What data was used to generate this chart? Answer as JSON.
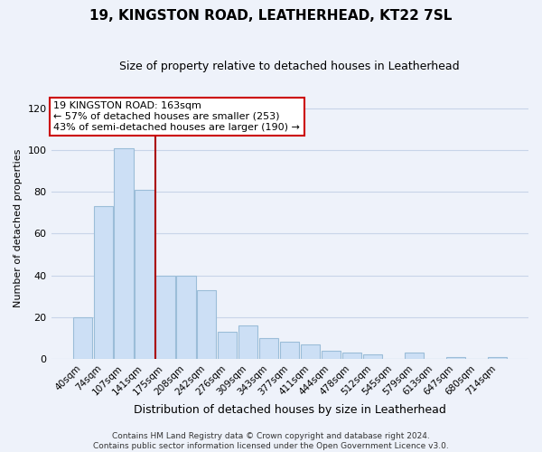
{
  "title": "19, KINGSTON ROAD, LEATHERHEAD, KT22 7SL",
  "subtitle": "Size of property relative to detached houses in Leatherhead",
  "xlabel": "Distribution of detached houses by size in Leatherhead",
  "ylabel": "Number of detached properties",
  "bar_labels": [
    "40sqm",
    "74sqm",
    "107sqm",
    "141sqm",
    "175sqm",
    "208sqm",
    "242sqm",
    "276sqm",
    "309sqm",
    "343sqm",
    "377sqm",
    "411sqm",
    "444sqm",
    "478sqm",
    "512sqm",
    "545sqm",
    "579sqm",
    "613sqm",
    "647sqm",
    "680sqm",
    "714sqm"
  ],
  "bar_values": [
    20,
    73,
    101,
    81,
    40,
    40,
    33,
    13,
    16,
    10,
    8,
    7,
    4,
    3,
    2,
    0,
    3,
    0,
    1,
    0,
    1
  ],
  "bar_color": "#ccdff5",
  "bar_edge_color": "#9bbdd8",
  "vline_color": "#aa0000",
  "annotation_line1": "19 KINGSTON ROAD: 163sqm",
  "annotation_line2": "← 57% of detached houses are smaller (253)",
  "annotation_line3": "43% of semi-detached houses are larger (190) →",
  "annotation_box_color": "#ffffff",
  "annotation_box_edge": "#cc0000",
  "ylim": [
    0,
    125
  ],
  "yticks": [
    0,
    20,
    40,
    60,
    80,
    100,
    120
  ],
  "footer_text": "Contains HM Land Registry data © Crown copyright and database right 2024.\nContains public sector information licensed under the Open Government Licence v3.0.",
  "grid_color": "#c8d4e8",
  "background_color": "#eef2fa",
  "title_fontsize": 11,
  "subtitle_fontsize": 9,
  "xlabel_fontsize": 9,
  "ylabel_fontsize": 8,
  "tick_fontsize": 7.5,
  "annot_fontsize": 8,
  "footer_fontsize": 6.5
}
